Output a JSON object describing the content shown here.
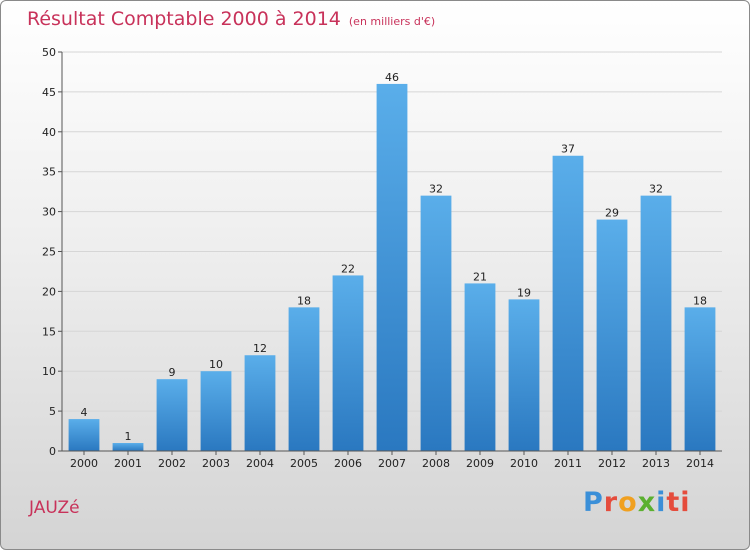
{
  "chart_data": {
    "type": "bar",
    "title": "Résultat Comptable 2000 à 2014",
    "subtitle": "(en milliers d'€)",
    "categories": [
      "2000",
      "2001",
      "2002",
      "2003",
      "2004",
      "2005",
      "2006",
      "2007",
      "2008",
      "2009",
      "2010",
      "2011",
      "2012",
      "2013",
      "2014"
    ],
    "values": [
      4,
      1,
      9,
      10,
      12,
      18,
      22,
      46,
      32,
      21,
      19,
      37,
      29,
      32,
      18
    ],
    "ylim": [
      0,
      50
    ],
    "yticks": [
      0,
      5,
      10,
      15,
      20,
      25,
      30,
      35,
      40,
      45,
      50
    ],
    "xlabel": "",
    "ylabel": "",
    "bar_color": "#4a9fe0",
    "bar_color_dark": "#2a78c0"
  },
  "commune": "JAUZé",
  "logo": [
    "P",
    "r",
    "o",
    "x",
    "i",
    "ti"
  ]
}
